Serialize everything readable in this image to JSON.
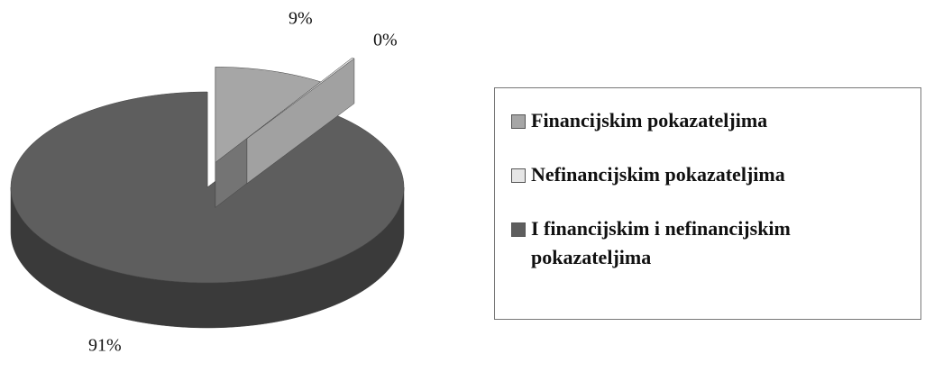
{
  "chart_data": {
    "type": "pie",
    "categories": [
      "Financijskim pokazateljima",
      "Nefinancijskim pokazateljima",
      "I financijskim i nefinancijskim pokazateljima"
    ],
    "values": [
      9,
      0,
      91
    ],
    "value_labels": [
      "9%",
      "0%",
      "91%"
    ],
    "colors": [
      "#a6a6a6",
      "#e6e6e6",
      "#5e5e5e"
    ],
    "legend": "right"
  }
}
